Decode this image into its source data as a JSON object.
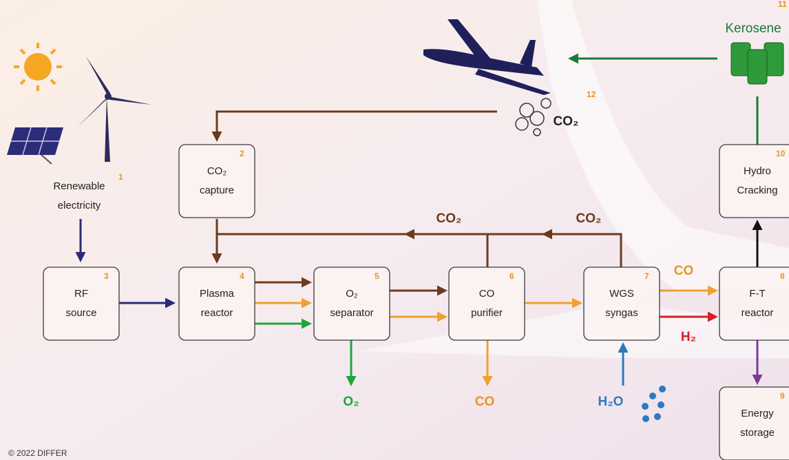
{
  "nodes": [
    {
      "number": "1",
      "label": [
        "Renewable",
        "electricity"
      ]
    },
    {
      "number": "2",
      "label": [
        "CO₂",
        "capture"
      ]
    },
    {
      "number": "3",
      "label": [
        "RF",
        "source"
      ]
    },
    {
      "number": "4",
      "label": [
        "Plasma",
        "reactor"
      ]
    },
    {
      "number": "5",
      "label": [
        "O₂",
        "separator"
      ]
    },
    {
      "number": "6",
      "label": [
        "CO",
        "purifier"
      ]
    },
    {
      "number": "7",
      "label": [
        "WGS",
        "syngas"
      ]
    },
    {
      "number": "8",
      "label": [
        "F-T",
        "reactor"
      ]
    },
    {
      "number": "9",
      "label": [
        "Energy",
        "storage"
      ]
    },
    {
      "number": "10",
      "label": [
        "Hydro",
        "Cracking"
      ]
    },
    {
      "number": "11",
      "label": [
        "Kerosene"
      ]
    },
    {
      "number": "12",
      "label": [
        "CO₂"
      ]
    }
  ],
  "flow_labels": [
    "CO₂",
    "CO₂",
    "CO",
    "H₂",
    "O₂",
    "CO",
    "H₂O"
  ],
  "copyright": "© 2022 DIFFER"
}
